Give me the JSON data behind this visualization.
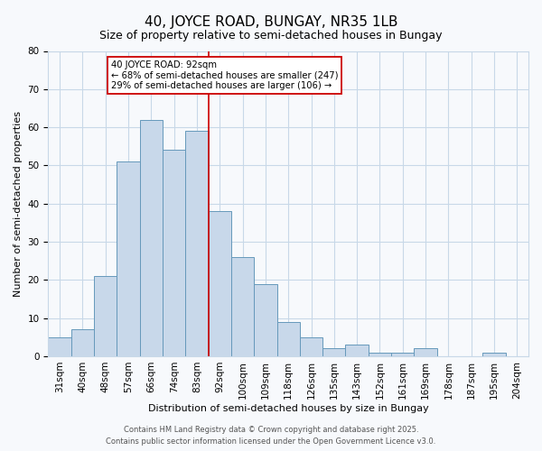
{
  "title": "40, JOYCE ROAD, BUNGAY, NR35 1LB",
  "subtitle": "Size of property relative to semi-detached houses in Bungay",
  "xlabel": "Distribution of semi-detached houses by size in Bungay",
  "ylabel": "Number of semi-detached properties",
  "bar_values": [
    5,
    7,
    21,
    51,
    62,
    54,
    59,
    38,
    26,
    19,
    9,
    5,
    2,
    3,
    1,
    1,
    2,
    0,
    0,
    1
  ],
  "bar_labels": [
    "31sqm",
    "40sqm",
    "48sqm",
    "57sqm",
    "66sqm",
    "74sqm",
    "83sqm",
    "92sqm",
    "100sqm",
    "109sqm",
    "118sqm",
    "126sqm",
    "135sqm",
    "143sqm",
    "152sqm",
    "161sqm",
    "169sqm",
    "178sqm",
    "187sqm",
    "195sqm",
    "204sqm"
  ],
  "bar_color": "#c8d8ea",
  "bar_edge_color": "#6699bb",
  "vline_index": 7,
  "vline_color": "#cc0000",
  "annotation_title": "40 JOYCE ROAD: 92sqm",
  "annotation_line2": "← 68% of semi-detached houses are smaller (247)",
  "annotation_line3": "29% of semi-detached houses are larger (106) →",
  "annotation_box_edge": "#cc0000",
  "ylim": [
    0,
    80
  ],
  "yticks": [
    0,
    10,
    20,
    30,
    40,
    50,
    60,
    70,
    80
  ],
  "footnote1": "Contains HM Land Registry data © Crown copyright and database right 2025.",
  "footnote2": "Contains public sector information licensed under the Open Government Licence v3.0.",
  "bg_color": "#f7f9fc",
  "grid_color": "#c8d8e8",
  "title_fontsize": 11,
  "subtitle_fontsize": 9,
  "axis_label_fontsize": 8,
  "tick_fontsize": 7.5,
  "footnote_fontsize": 6
}
